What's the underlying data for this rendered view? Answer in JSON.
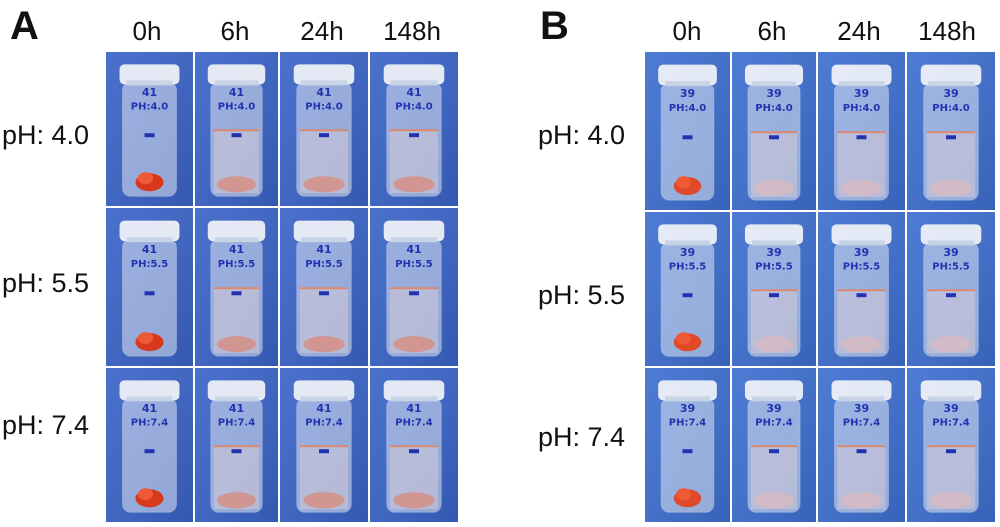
{
  "panels": [
    {
      "letter": "A",
      "bottle_label": "41",
      "cols": [
        "0h",
        "6h",
        "24h",
        "148h"
      ],
      "rows": [
        {
          "ph": "pH: 4.0",
          "cap_text": "PH:4.0"
        },
        {
          "ph": "pH: 5.5",
          "cap_text": "PH:5.5"
        },
        {
          "ph": "pH: 7.4",
          "cap_text": "PH:7.4"
        }
      ],
      "colors": {
        "bg": "#3a64c8",
        "sample": "#d8381e",
        "ink": "#2233b0"
      }
    },
    {
      "letter": "B",
      "bottle_label": "39",
      "cols": [
        "0h",
        "6h",
        "24h",
        "148h"
      ],
      "rows": [
        {
          "ph": "pH: 4.0",
          "cap_text": "PH:4.0"
        },
        {
          "ph": "pH: 5.5",
          "cap_text": "PH:5.5"
        },
        {
          "ph": "pH: 7.4",
          "cap_text": "PH:7.4"
        }
      ],
      "colors": {
        "bg": "#3e6fd0",
        "sample": "#e04a2a",
        "ink": "#2233b0"
      }
    }
  ]
}
